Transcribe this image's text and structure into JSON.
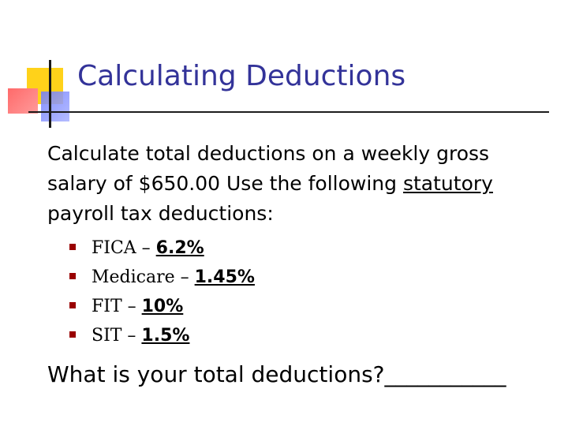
{
  "slide": {
    "title": "Calculating Deductions",
    "intro_before": "Calculate total deductions on a weekly gross salary of $650.00 Use the following",
    "intro_underlined": "statutory",
    "intro_after": "payroll tax deductions:",
    "deductions": [
      {
        "label": "FICA – ",
        "value": "6.2%"
      },
      {
        "label": "Medicare – ",
        "value": "1.45%"
      },
      {
        "label": "FIT – ",
        "value": "10%"
      },
      {
        "label": "SIT – ",
        "value": "1.5%"
      }
    ],
    "question": "What is your total deductions?___________"
  },
  "colors": {
    "title": "#333399",
    "bullet": "#990000",
    "logo_yellow": "#ffd21a",
    "logo_red": "#ff6a6a",
    "logo_blue": "#6f7cff"
  }
}
